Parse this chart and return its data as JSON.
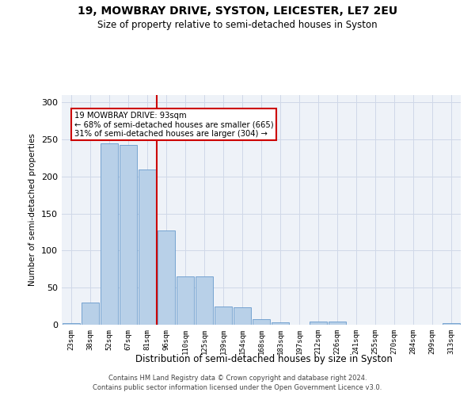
{
  "title1": "19, MOWBRAY DRIVE, SYSTON, LEICESTER, LE7 2EU",
  "title2": "Size of property relative to semi-detached houses in Syston",
  "xlabel": "Distribution of semi-detached houses by size in Syston",
  "ylabel": "Number of semi-detached properties",
  "footnote1": "Contains HM Land Registry data © Crown copyright and database right 2024.",
  "footnote2": "Contains public sector information licensed under the Open Government Licence v3.0.",
  "annotation_title": "19 MOWBRAY DRIVE: 93sqm",
  "annotation_line1": "← 68% of semi-detached houses are smaller (665)",
  "annotation_line2": "31% of semi-detached houses are larger (304) →",
  "bar_labels": [
    "23sqm",
    "38sqm",
    "52sqm",
    "67sqm",
    "81sqm",
    "96sqm",
    "110sqm",
    "125sqm",
    "139sqm",
    "154sqm",
    "168sqm",
    "183sqm",
    "197sqm",
    "212sqm",
    "226sqm",
    "241sqm",
    "255sqm",
    "270sqm",
    "284sqm",
    "299sqm",
    "313sqm"
  ],
  "bar_values": [
    2,
    30,
    245,
    243,
    210,
    127,
    65,
    65,
    25,
    24,
    8,
    3,
    0,
    4,
    4,
    0,
    0,
    0,
    0,
    0,
    2
  ],
  "bar_color": "#b8d0e8",
  "bar_edge_color": "#6699cc",
  "red_line_index": 5,
  "ylim": [
    0,
    310
  ],
  "yticks": [
    0,
    50,
    100,
    150,
    200,
    250,
    300
  ],
  "red_line_color": "#cc0000",
  "annotation_box_color": "#cc0000",
  "grid_color": "#d0d8e8",
  "bg_color": "#eef2f8"
}
